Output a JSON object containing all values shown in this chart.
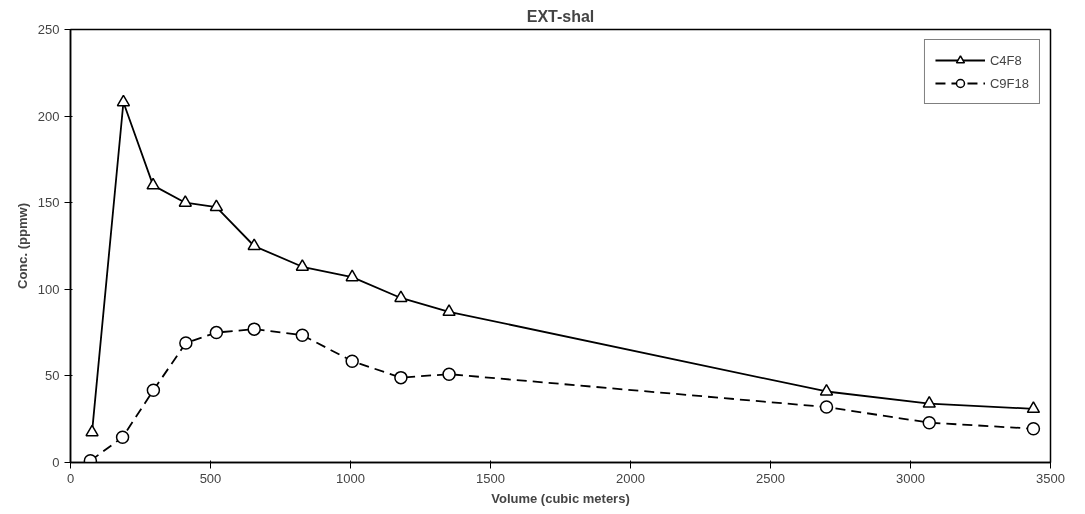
{
  "chart_data": {
    "type": "line",
    "title": "EXT-shal",
    "xlabel": "Volume (cubic meters)",
    "ylabel": "Conc. (ppmw)",
    "xlim": [
      0,
      3500
    ],
    "xticks": [
      0,
      500,
      1000,
      1500,
      2000,
      2500,
      3000,
      3500
    ],
    "ylim": [
      0,
      250
    ],
    "yticks": [
      0,
      50,
      100,
      150,
      200,
      250
    ],
    "grid": false,
    "legend": "top right",
    "series": [
      {
        "name": "C4F8",
        "color": "#000000",
        "marker": "triangle",
        "line_style": "solid",
        "x": [
          77,
          189,
          295,
          410,
          521,
          656,
          828,
          1006,
          1180,
          1352,
          2700,
          3067,
          3439
        ],
        "values": [
          17.5,
          208,
          160,
          150,
          147.5,
          125,
          113,
          107,
          95,
          87,
          41,
          34,
          31
        ]
      },
      {
        "name": "C9F18",
        "color": "#000000",
        "marker": "circle",
        "line_style": "dashed",
        "x": [
          71,
          186,
          296,
          412,
          521,
          656,
          828,
          1006,
          1180,
          1352,
          2700,
          3067,
          3439
        ],
        "values": [
          1,
          14.6,
          41.7,
          69,
          75,
          77,
          73.5,
          58.5,
          49,
          51,
          32,
          23,
          19.5
        ]
      }
    ]
  }
}
